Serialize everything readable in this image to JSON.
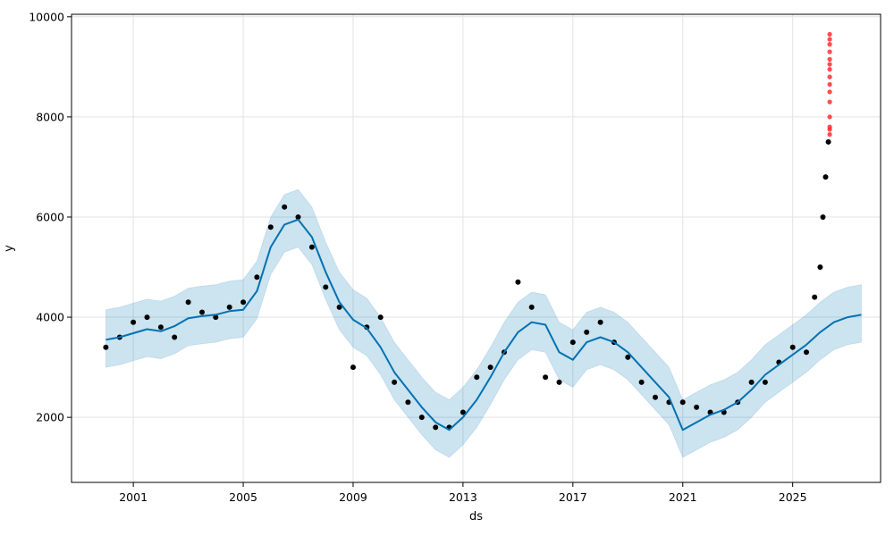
{
  "chart_data": {
    "type": "line",
    "title": "",
    "xlabel": "ds",
    "ylabel": "y",
    "xlim": [
      1998.75,
      2028.2
    ],
    "ylim": [
      700,
      10050
    ],
    "grid": true,
    "x_ticks": [
      {
        "value": 2001,
        "label": "2001"
      },
      {
        "value": 2005,
        "label": "2005"
      },
      {
        "value": 2009,
        "label": "2009"
      },
      {
        "value": 2013,
        "label": "2013"
      },
      {
        "value": 2017,
        "label": "2017"
      },
      {
        "value": 2021,
        "label": "2021"
      },
      {
        "value": 2025,
        "label": "2025"
      }
    ],
    "y_ticks": [
      {
        "value": 2000,
        "label": "2000"
      },
      {
        "value": 4000,
        "label": "4000"
      },
      {
        "value": 6000,
        "label": "6000"
      },
      {
        "value": 8000,
        "label": "8000"
      },
      {
        "value": 10000,
        "label": "10000"
      }
    ],
    "colors": {
      "forecast_line": "#0072B2",
      "uncertainty_band": "#0072B2",
      "observed_points": "#000000",
      "highlighted_points": "#ff2222"
    },
    "series": [
      {
        "kind": "forecast",
        "x": [
          2000.0,
          2000.5,
          2001.0,
          2001.5,
          2002.0,
          2002.5,
          2003.0,
          2003.5,
          2004.0,
          2004.5,
          2005.0,
          2005.5,
          2006.0,
          2006.5,
          2007.0,
          2007.5,
          2008.0,
          2008.5,
          2009.0,
          2009.5,
          2010.0,
          2010.5,
          2011.0,
          2011.5,
          2012.0,
          2012.5,
          2013.0,
          2013.5,
          2014.0,
          2014.5,
          2015.0,
          2015.5,
          2016.0,
          2016.5,
          2017.0,
          2017.5,
          2018.0,
          2018.5,
          2019.0,
          2019.5,
          2020.0,
          2020.5,
          2021.0,
          2021.5,
          2022.0,
          2022.5,
          2023.0,
          2023.5,
          2024.0,
          2024.5,
          2025.0,
          2025.5,
          2026.0,
          2026.5,
          2027.0,
          2027.5
        ],
        "y": [
          3550,
          3600,
          3680,
          3760,
          3720,
          3820,
          3980,
          4020,
          4050,
          4120,
          4150,
          4520,
          5400,
          5850,
          5950,
          5600,
          4900,
          4300,
          3950,
          3780,
          3400,
          2900,
          2550,
          2200,
          1900,
          1750,
          2000,
          2350,
          2800,
          3300,
          3700,
          3900,
          3850,
          3300,
          3150,
          3500,
          3600,
          3500,
          3300,
          3000,
          2700,
          2400,
          1750,
          1900,
          2050,
          2150,
          2300,
          2550,
          2850,
          3050,
          3250,
          3450,
          3700,
          3900,
          4000,
          4050
        ]
      },
      {
        "kind": "uncertainty_band",
        "x": [
          2000.0,
          2000.5,
          2001.0,
          2001.5,
          2002.0,
          2002.5,
          2003.0,
          2003.5,
          2004.0,
          2004.5,
          2005.0,
          2005.5,
          2006.0,
          2006.5,
          2007.0,
          2007.5,
          2008.0,
          2008.5,
          2009.0,
          2009.5,
          2010.0,
          2010.5,
          2011.0,
          2011.5,
          2012.0,
          2012.5,
          2013.0,
          2013.5,
          2014.0,
          2014.5,
          2015.0,
          2015.5,
          2016.0,
          2016.5,
          2017.0,
          2017.5,
          2018.0,
          2018.5,
          2019.0,
          2019.5,
          2020.0,
          2020.5,
          2021.0,
          2021.5,
          2022.0,
          2022.5,
          2023.0,
          2023.5,
          2024.0,
          2024.5,
          2025.0,
          2025.5,
          2026.0,
          2026.5,
          2027.0,
          2027.5
        ],
        "lower": [
          3000,
          3050,
          3130,
          3210,
          3170,
          3270,
          3430,
          3470,
          3500,
          3570,
          3600,
          3970,
          4850,
          5300,
          5400,
          5050,
          4350,
          3750,
          3400,
          3230,
          2850,
          2350,
          2000,
          1650,
          1350,
          1200,
          1450,
          1800,
          2250,
          2750,
          3150,
          3350,
          3300,
          2750,
          2600,
          2950,
          3050,
          2950,
          2750,
          2450,
          2150,
          1850,
          1200,
          1350,
          1500,
          1600,
          1750,
          2000,
          2300,
          2500,
          2700,
          2900,
          3150,
          3350,
          3450,
          3500
        ],
        "upper": [
          4150,
          4200,
          4280,
          4360,
          4320,
          4420,
          4580,
          4620,
          4650,
          4720,
          4750,
          5120,
          6000,
          6450,
          6550,
          6200,
          5500,
          4900,
          4550,
          4380,
          4000,
          3500,
          3150,
          2800,
          2500,
          2350,
          2600,
          2950,
          3400,
          3900,
          4300,
          4500,
          4450,
          3900,
          3750,
          4100,
          4200,
          4100,
          3900,
          3600,
          3300,
          3000,
          2350,
          2500,
          2650,
          2750,
          2900,
          3150,
          3450,
          3650,
          3850,
          4050,
          4300,
          4500,
          4600,
          4650
        ]
      },
      {
        "kind": "observed",
        "x": [
          2000.0,
          2000.5,
          2001.0,
          2001.5,
          2002.0,
          2002.5,
          2003.0,
          2003.5,
          2004.0,
          2004.5,
          2005.0,
          2005.5,
          2006.0,
          2006.5,
          2007.0,
          2007.5,
          2008.0,
          2008.5,
          2009.0,
          2009.5,
          2010.0,
          2010.5,
          2011.0,
          2011.5,
          2012.0,
          2012.5,
          2013.0,
          2013.5,
          2014.0,
          2014.5,
          2015.0,
          2015.5,
          2016.0,
          2016.5,
          2017.0,
          2017.5,
          2018.0,
          2018.5,
          2019.0,
          2019.5,
          2020.0,
          2020.5,
          2021.0,
          2021.5,
          2022.0,
          2022.5,
          2023.0,
          2023.5,
          2024.0,
          2024.5,
          2025.0,
          2025.5,
          2025.8,
          2026.0,
          2026.1,
          2026.2,
          2026.3
        ],
        "y": [
          3400,
          3600,
          3900,
          4000,
          3800,
          3600,
          4300,
          4100,
          4000,
          4200,
          4300,
          4800,
          5800,
          6200,
          6000,
          5400,
          4600,
          4200,
          3000,
          3800,
          4000,
          2700,
          2300,
          2000,
          1800,
          1800,
          2100,
          2800,
          3000,
          3300,
          4700,
          4200,
          2800,
          2700,
          3500,
          3700,
          3900,
          3500,
          3200,
          2700,
          2400,
          2300,
          2300,
          2200,
          2100,
          2100,
          2300,
          2700,
          2700,
          3100,
          3400,
          3300,
          4400,
          5000,
          6000,
          6800,
          7500
        ]
      },
      {
        "kind": "highlighted",
        "x": [
          2026.35,
          2026.35,
          2026.35,
          2026.35,
          2026.35,
          2026.35,
          2026.35,
          2026.35,
          2026.35,
          2026.35,
          2026.35,
          2026.35,
          2026.35,
          2026.35,
          2026.35
        ],
        "y": [
          7650,
          7750,
          7800,
          8000,
          8300,
          8500,
          8650,
          8800,
          8950,
          9050,
          9150,
          9300,
          9450,
          9550,
          9650
        ]
      }
    ]
  }
}
